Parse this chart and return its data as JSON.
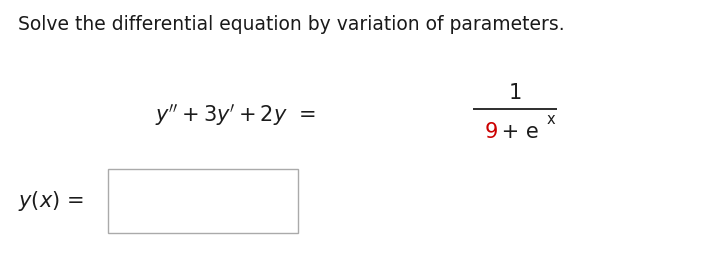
{
  "title": "Solve the differential equation by variation of parameters.",
  "title_color": "#1a1a1a",
  "title_fontsize": 13.5,
  "bg_color": "#ffffff",
  "text_color": "#1c1c1c",
  "red_color": "#cc0000",
  "eq_fontsize": 15,
  "label_fontsize": 15,
  "sup_fontsize": 10.5
}
